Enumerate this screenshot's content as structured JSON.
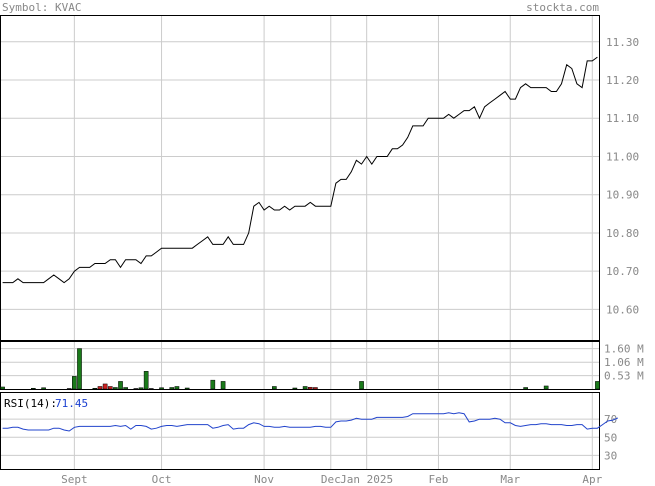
{
  "header": {
    "symbol_label": "Symbol: KVAC",
    "brand": "stockta.com"
  },
  "colors": {
    "price_line": "#000000",
    "grid": "#cccccc",
    "vol_up": "#1a7a1a",
    "vol_down": "#cc2222",
    "rsi_line": "#2244cc",
    "text": "#888888"
  },
  "chart_data": [
    {
      "type": "line",
      "name": "price",
      "y_ticks": [
        "11.30",
        "11.20",
        "11.10",
        "11.00",
        "10.90",
        "10.80",
        "10.70",
        "10.60"
      ],
      "ylim": [
        10.52,
        11.37
      ],
      "x_ticks": [
        "Sept",
        "Oct",
        "Nov",
        "Dec",
        "Jan 2025",
        "Feb",
        "Mar",
        "Apr"
      ],
      "x_tick_index": [
        14,
        31,
        51,
        64,
        71,
        85,
        99,
        115
      ],
      "values": [
        10.67,
        10.67,
        10.67,
        10.68,
        10.67,
        10.67,
        10.67,
        10.67,
        10.67,
        10.68,
        10.69,
        10.68,
        10.67,
        10.68,
        10.7,
        10.71,
        10.71,
        10.71,
        10.72,
        10.72,
        10.72,
        10.73,
        10.73,
        10.71,
        10.73,
        10.73,
        10.73,
        10.72,
        10.74,
        10.74,
        10.75,
        10.76,
        10.76,
        10.76,
        10.76,
        10.76,
        10.76,
        10.76,
        10.77,
        10.78,
        10.79,
        10.77,
        10.77,
        10.77,
        10.79,
        10.77,
        10.77,
        10.77,
        10.8,
        10.87,
        10.88,
        10.86,
        10.87,
        10.86,
        10.86,
        10.87,
        10.86,
        10.87,
        10.87,
        10.87,
        10.88,
        10.87,
        10.87,
        10.87,
        10.87,
        10.93,
        10.94,
        10.94,
        10.96,
        10.99,
        10.98,
        11.0,
        10.98,
        11.0,
        11.0,
        11.0,
        11.02,
        11.02,
        11.03,
        11.05,
        11.08,
        11.08,
        11.08,
        11.1,
        11.1,
        11.1,
        11.1,
        11.11,
        11.1,
        11.11,
        11.12,
        11.12,
        11.13,
        11.1,
        11.13,
        11.14,
        11.15,
        11.16,
        11.17,
        11.15,
        11.15,
        11.18,
        11.19,
        11.18,
        11.18,
        11.18,
        11.18,
        11.17,
        11.17,
        11.19,
        11.24,
        11.23,
        11.19,
        11.18,
        11.25,
        11.25,
        11.26
      ]
    },
    {
      "type": "bar",
      "name": "volume",
      "y_ticks": [
        "1.60 M",
        "1.06 M",
        "0.53 M"
      ],
      "ylim": [
        0,
        1.9
      ],
      "values": [
        0.08,
        0,
        0,
        0,
        0,
        0,
        0.03,
        0,
        0.05,
        0,
        0,
        0,
        0,
        0.02,
        0.5,
        1.6,
        0,
        0,
        0.03,
        0.1,
        0.2,
        0.1,
        0.06,
        0.3,
        0.06,
        0,
        0.02,
        0.05,
        0.7,
        0.02,
        0,
        0.05,
        0,
        0.06,
        0.1,
        0,
        0.04,
        0,
        0,
        0,
        0,
        0.35,
        0,
        0.3,
        0,
        0,
        0,
        0,
        0,
        0,
        0,
        0,
        0,
        0.1,
        0,
        0,
        0,
        0.04,
        0,
        0.1,
        0.07,
        0.06,
        0,
        0,
        0,
        0,
        0,
        0,
        0,
        0,
        0.3,
        0,
        0,
        0,
        0,
        0,
        0,
        0,
        0,
        0,
        0,
        0,
        0,
        0,
        0,
        0,
        0,
        0,
        0,
        0,
        0,
        0,
        0,
        0,
        0,
        0,
        0,
        0,
        0,
        0,
        0,
        0,
        0.06,
        0,
        0,
        0,
        0.12,
        0,
        0,
        0,
        0,
        0,
        0,
        0,
        0,
        0,
        0.3
      ],
      "down_index": [
        19,
        20,
        21,
        60,
        61,
        104
      ]
    },
    {
      "type": "line",
      "name": "rsi",
      "label": "RSI(14):",
      "last_value": "71.45",
      "y_ticks": [
        "70",
        "50",
        "30"
      ],
      "ylim": [
        15,
        100
      ],
      "values": [
        60,
        60,
        61,
        61,
        59,
        58,
        58,
        58,
        58,
        58,
        60,
        60,
        58,
        57,
        61,
        62,
        62,
        62,
        62,
        62,
        62,
        62,
        63,
        62,
        63,
        59,
        63,
        63,
        62,
        59,
        60,
        62,
        63,
        63,
        62,
        63,
        64,
        64,
        64,
        64,
        64,
        60,
        61,
        63,
        64,
        59,
        60,
        60,
        64,
        66,
        65,
        62,
        62,
        61,
        61,
        62,
        61,
        61,
        61,
        61,
        61,
        62,
        62,
        61,
        61,
        67,
        68,
        68,
        69,
        71,
        70,
        70,
        70,
        72,
        72,
        72,
        72,
        72,
        72,
        73,
        76,
        76,
        76,
        76,
        76,
        76,
        76,
        77,
        76,
        77,
        76,
        67,
        68,
        70,
        70,
        70,
        71,
        70,
        66,
        66,
        63,
        62,
        63,
        64,
        64,
        65,
        65,
        64,
        64,
        64,
        63,
        63,
        64,
        64,
        59,
        60,
        60,
        64,
        68,
        69,
        71.45
      ]
    }
  ]
}
